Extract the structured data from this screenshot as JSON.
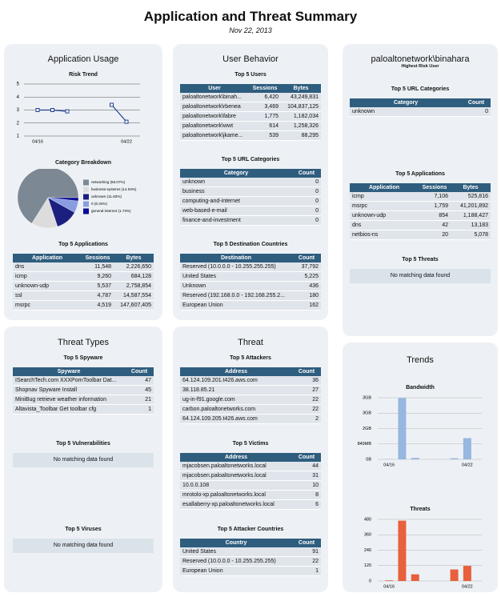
{
  "header": {
    "title": "Application and Threat Summary",
    "date": "Nov 22, 2013"
  },
  "panels": [
    {
      "title": "Application Usage",
      "sections": [
        {
          "title": "Risk Trend",
          "chart": {
            "type": "line",
            "categories": [
              "04/16",
              null,
              null,
              null,
              null,
              null,
              "04/22"
            ],
            "values": [
              3,
              3,
              2.9,
              null,
              null,
              3.4,
              2.1
            ],
            "color": "#1f3f8f",
            "ylim": [
              1,
              5
            ],
            "yticks": [
              1,
              2,
              3,
              4,
              5
            ],
            "grid": true
          }
        },
        {
          "title": "Category Breakdown",
          "chart": {
            "type": "pie",
            "categories": [
              "networking (66.07%)",
              "business-systems (14.04%)",
              "unknown (11.83%)",
              "0 (6.34%)",
              "general-internet (1.73%)"
            ],
            "values": [
              66.07,
              14.04,
              11.83,
              6.34,
              1.73
            ],
            "colors": [
              "#7d8895",
              "#dcdcdc",
              "#1c1f7e",
              "#8a9ce0",
              "#0a0a96"
            ]
          }
        },
        {
          "title": "Top 5 Applications",
          "table": {
            "columns": [
              "Application",
              "Sessions",
              "Bytes"
            ],
            "rows": [
              [
                "dns",
                "11,548",
                "2,226,650"
              ],
              [
                "icmp",
                "9,260",
                "684,128"
              ],
              [
                "unknown-udp",
                "5,537",
                "2,758,854"
              ],
              [
                "ssl",
                "4,787",
                "14,587,554"
              ],
              [
                "msrpc",
                "4,519",
                "147,607,405"
              ]
            ]
          }
        }
      ]
    },
    {
      "title": "User Behavior",
      "sections": [
        {
          "title": "Top 5 Users",
          "table": {
            "columns": [
              "User",
              "Sessions",
              "Bytes"
            ],
            "rows": [
              [
                "paloaltonetwork\\binah...",
                "6,420",
                "43,249,831"
              ],
              [
                "paloaltonetwork\\rbenea",
                "3,469",
                "104,837,125"
              ],
              [
                "paloaltonetwork\\fabre",
                "1,775",
                "1,182,034"
              ],
              [
                "paloaltonetwork\\wwt",
                "614",
                "1,258,326"
              ],
              [
                "paloaltonetwork\\jkame...",
                "539",
                "88,295"
              ]
            ]
          }
        },
        {
          "title": "Top 5 URL Categories",
          "table": {
            "columns": [
              "Category",
              "Count"
            ],
            "rows": [
              [
                "unknown",
                "0"
              ],
              [
                "business",
                "0"
              ],
              [
                "computing-and-internet",
                "0"
              ],
              [
                "web-based-e-mail",
                "0"
              ],
              [
                "finance-and-investment",
                "0"
              ]
            ]
          }
        },
        {
          "title": "Top 5 Destination Countries",
          "table": {
            "columns": [
              "Destination",
              "Count"
            ],
            "rows": [
              [
                "Reserved (10.0.0.0 - 10.255.255.255)",
                "37,792"
              ],
              [
                "United States",
                "5,225"
              ],
              [
                "Unknown",
                "436"
              ],
              [
                "Reserved (192.168.0.0 - 192.168.255.2...",
                "180"
              ],
              [
                "European Union",
                "162"
              ]
            ]
          }
        }
      ]
    },
    {
      "title": "paloaltonetwork\\binahara",
      "subtitle": "Highest Risk User",
      "sections": [
        {
          "title": "Top 5 URL Categories",
          "table": {
            "columns": [
              "Category",
              "Count"
            ],
            "rows": [
              [
                "unknown",
                "0"
              ]
            ]
          }
        },
        {
          "title": "Top 5 Applications",
          "table": {
            "columns": [
              "Application",
              "Sessions",
              "Bytes"
            ],
            "rows": [
              [
                "icmp",
                "7,106",
                "525,816"
              ],
              [
                "msrpc",
                "1,759",
                "41,201,892"
              ],
              [
                "unknown-udp",
                "854",
                "1,188,427"
              ],
              [
                "dns",
                "42",
                "13,183"
              ],
              [
                "netbios-ns",
                "20",
                "5,078"
              ]
            ]
          }
        },
        {
          "title": "Top 5 Threats",
          "message": "No matching data found"
        }
      ]
    },
    {
      "title": "Threat Types",
      "sections": [
        {
          "title": "Top 5 Spyware",
          "table": {
            "columns": [
              "Spyware",
              "Count"
            ],
            "rows": [
              [
                "ISearchTech.com XXXPornToolbar Dat...",
                "47"
              ],
              [
                "Shopnav Spyware Install",
                "45"
              ],
              [
                "MiniBug retrieve weather information",
                "21"
              ],
              [
                "Altavista_Toolbar Get toolbar cfg",
                "1"
              ]
            ]
          }
        },
        {
          "title": "Top 5 Vulnerabilities",
          "message": "No matching data found"
        },
        {
          "title": "Top 5 Viruses",
          "message": "No matching data found"
        }
      ]
    },
    {
      "title": "Threat",
      "sections": [
        {
          "title": "Top 5 Attackers",
          "table": {
            "columns": [
              "Address",
              "Count"
            ],
            "rows": [
              [
                "64.124.109.201.t426.aws.com",
                "36"
              ],
              [
                "38.118.85.21",
                "27"
              ],
              [
                "ug-in-f91.google.com",
                "22"
              ],
              [
                "carbon.paloaltonetworks.com",
                "22"
              ],
              [
                "64.124.109.205.t426.aws.com",
                "2"
              ]
            ]
          }
        },
        {
          "title": "Top 5 Victims",
          "table": {
            "columns": [
              "Address",
              "Count"
            ],
            "rows": [
              [
                "mjacobsen.paloaltonetworks.local",
                "44"
              ],
              [
                "mjacobsen.paloaltonetworks.local",
                "31"
              ],
              [
                "10.0.0.108",
                "10"
              ],
              [
                "mrotolo-xp.paloaltonetworks.local",
                "8"
              ],
              [
                "esallaberry-xp.paloaltonetworks.local",
                "6"
              ]
            ]
          }
        },
        {
          "title": "Top 5 Attacker Countries",
          "table": {
            "columns": [
              "Country",
              "Count"
            ],
            "rows": [
              [
                "United States",
                "91"
              ],
              [
                "Reserved (10.0.0.0 - 10.255.255.255)",
                "22"
              ],
              [
                "European Union",
                "1"
              ]
            ]
          }
        }
      ]
    },
    {
      "title": "Trends",
      "sections": [
        {
          "title": "Bandwidth",
          "chart": {
            "type": "bar",
            "categories": [
              "04/16",
              null,
              null,
              null,
              null,
              null,
              "04/22"
            ],
            "values": [
              15,
              3380,
              80,
              0,
              0,
              60,
              1170
            ],
            "color": "#97b6e0",
            "ylim": [
              0,
              3396
            ],
            "yticks": [
              {
                "value": 0,
                "label": "0B"
              },
              {
                "value": 849,
                "label": "849MB"
              },
              {
                "value": 1698,
                "label": "2GB"
              },
              {
                "value": 2547,
                "label": "3GB"
              },
              {
                "value": 3396,
                "label": "3GB"
              }
            ],
            "grid": true
          }
        },
        {
          "title": "Threats",
          "chart": {
            "type": "bar",
            "categories": [
              "04/16",
              null,
              null,
              null,
              null,
              null,
              "04/22"
            ],
            "values": [
              5,
              470,
              52,
              0,
              0,
              90,
              118
            ],
            "color": "#e8603c",
            "ylim": [
              0,
              480
            ],
            "yticks": [
              0,
              120,
              240,
              360,
              480
            ],
            "grid": true
          }
        }
      ]
    }
  ]
}
